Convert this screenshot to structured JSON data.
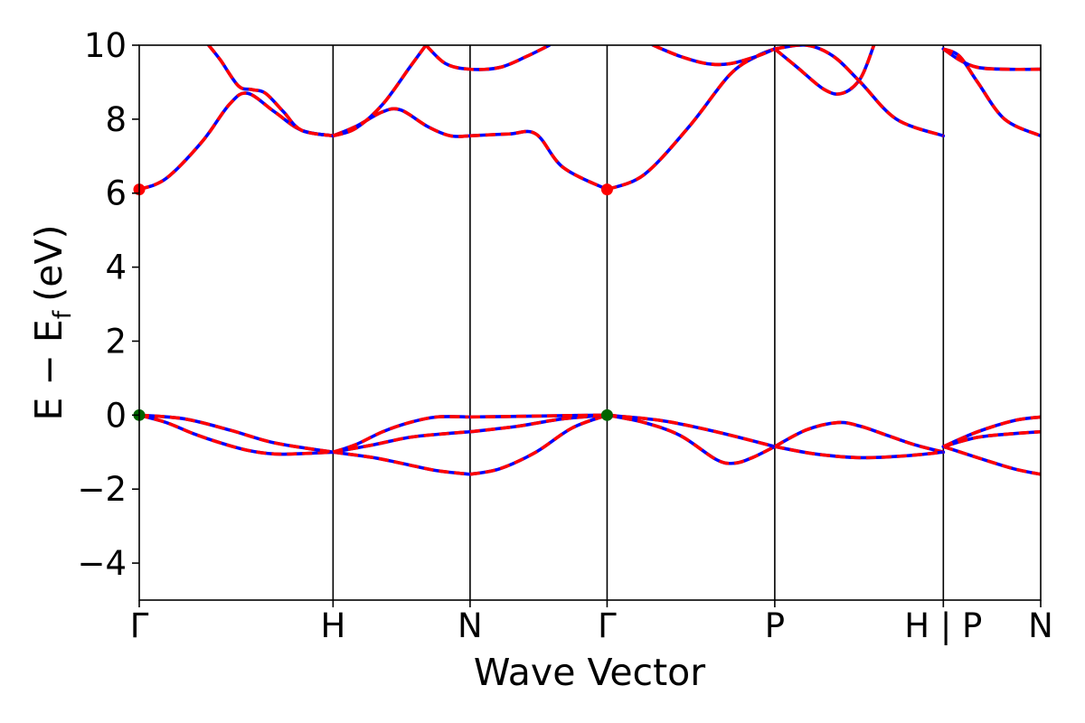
{
  "chart_data": {
    "type": "line",
    "title": "",
    "xlabel": "Wave Vector",
    "ylabel": "E − E",
    "ylabel_sub": "f",
    "ylabel_unit": "(eV)",
    "ylim": [
      -5,
      10
    ],
    "yticks": [
      -4,
      -2,
      0,
      2,
      4,
      6,
      8,
      10
    ],
    "ytick_labels": [
      "−4",
      "−2",
      "0",
      "2",
      "4",
      "6",
      "8",
      "10"
    ],
    "xlim": [
      0,
      1
    ],
    "kpoints": [
      {
        "label": "Γ",
        "x": 0.0
      },
      {
        "label": "H",
        "x": 0.215
      },
      {
        "label": "N",
        "x": 0.367
      },
      {
        "label": "Γ",
        "x": 0.519
      },
      {
        "label": "P",
        "x": 0.705
      },
      {
        "label": "H | P",
        "x": 0.892
      },
      {
        "label": "N",
        "x": 1.0
      }
    ],
    "band_colors": {
      "base": "#0000ff",
      "overlay": "#ff0000",
      "vbm": "#006400",
      "cbm": "#ff0000"
    },
    "bands": [
      {
        "name": "",
        "x": [
          0.0,
          0.03,
          0.06,
          0.09,
          0.12,
          0.15,
          0.18,
          0.215
        ],
        "y": [
          0.0,
          -0.2,
          -0.5,
          -0.75,
          -0.95,
          -1.05,
          -1.04,
          -1.0
        ]
      },
      {
        "name": "",
        "x": [
          0.0,
          0.05,
          0.1,
          0.15,
          0.215
        ],
        "y": [
          0.0,
          -0.1,
          -0.4,
          -0.75,
          -1.0
        ]
      },
      {
        "name": "",
        "x": [
          0.215,
          0.26,
          0.3,
          0.33,
          0.367
        ],
        "y": [
          -1.0,
          -1.15,
          -1.35,
          -1.5,
          -1.6
        ]
      },
      {
        "name": "",
        "x": [
          0.215,
          0.26,
          0.3,
          0.34,
          0.367
        ],
        "y": [
          -1.0,
          -0.8,
          -0.6,
          -0.5,
          -0.45
        ]
      },
      {
        "name": "",
        "x": [
          0.215,
          0.24,
          0.27,
          0.3,
          0.33,
          0.367
        ],
        "y": [
          -1.0,
          -0.8,
          -0.45,
          -0.2,
          -0.05,
          -0.05
        ]
      },
      {
        "name": "",
        "x": [
          0.367,
          0.4,
          0.44,
          0.48,
          0.519
        ],
        "y": [
          -1.6,
          -1.45,
          -1.0,
          -0.35,
          0.0
        ]
      },
      {
        "name": "",
        "x": [
          0.367,
          0.42,
          0.47,
          0.519
        ],
        "y": [
          -0.45,
          -0.3,
          -0.1,
          0.0
        ]
      },
      {
        "name": "",
        "x": [
          0.367,
          0.43,
          0.48,
          0.519
        ],
        "y": [
          -0.05,
          -0.03,
          -0.01,
          0.0
        ]
      },
      {
        "name": "",
        "x": [
          0.519,
          0.56,
          0.6,
          0.64,
          0.66,
          0.68,
          0.705
        ],
        "y": [
          0.0,
          -0.2,
          -0.55,
          -1.2,
          -1.3,
          -1.15,
          -0.85
        ]
      },
      {
        "name": "",
        "x": [
          0.519,
          0.58,
          0.64,
          0.705
        ],
        "y": [
          0.0,
          -0.15,
          -0.45,
          -0.85
        ]
      },
      {
        "name": "",
        "x": [
          0.705,
          0.74,
          0.775,
          0.8,
          0.83,
          0.86,
          0.892
        ],
        "y": [
          -0.85,
          -0.4,
          -0.2,
          -0.3,
          -0.55,
          -0.8,
          -1.0
        ]
      },
      {
        "name": "",
        "x": [
          0.705,
          0.75,
          0.8,
          0.85,
          0.892
        ],
        "y": [
          -0.85,
          -1.05,
          -1.15,
          -1.1,
          -1.0
        ]
      },
      {
        "name": "",
        "x": [
          0.892,
          0.93,
          0.97,
          1.0
        ],
        "y": [
          -0.85,
          -1.15,
          -1.45,
          -1.6
        ]
      },
      {
        "name": "",
        "x": [
          0.892,
          0.93,
          0.97,
          1.0
        ],
        "y": [
          -0.85,
          -0.6,
          -0.5,
          -0.45
        ]
      },
      {
        "name": "",
        "x": [
          0.892,
          0.93,
          0.97,
          1.0
        ],
        "y": [
          -0.85,
          -0.45,
          -0.15,
          -0.05
        ]
      },
      {
        "name": "",
        "x": [
          0.0,
          0.03,
          0.07,
          0.1,
          0.12,
          0.15,
          0.18,
          0.215
        ],
        "y": [
          6.1,
          6.4,
          7.4,
          8.4,
          8.7,
          8.2,
          7.7,
          7.55
        ]
      },
      {
        "name": "",
        "x": [
          0.077,
          0.09,
          0.11,
          0.125,
          0.14,
          0.16,
          0.18,
          0.215
        ],
        "y": [
          10.0,
          9.6,
          8.9,
          8.8,
          8.7,
          8.2,
          7.7,
          7.55
        ]
      },
      {
        "name": "",
        "x": [
          0.215,
          0.24,
          0.27,
          0.29,
          0.32,
          0.345,
          0.367
        ],
        "y": [
          7.55,
          7.8,
          8.2,
          8.25,
          7.8,
          7.55,
          7.55
        ]
      },
      {
        "name": "",
        "x": [
          0.215,
          0.24,
          0.27,
          0.3,
          0.318
        ],
        "y": [
          7.55,
          7.75,
          8.4,
          9.4,
          10.0
        ]
      },
      {
        "name": "",
        "x": [
          0.318,
          0.34,
          0.367,
          0.4,
          0.43,
          0.455
        ],
        "y": [
          10.0,
          9.5,
          9.35,
          9.4,
          9.7,
          10.0
        ]
      },
      {
        "name": "",
        "x": [
          0.367,
          0.41,
          0.44,
          0.47,
          0.519
        ],
        "y": [
          7.55,
          7.6,
          7.6,
          6.7,
          6.1
        ]
      },
      {
        "name": "",
        "x": [
          0.519,
          0.56,
          0.61,
          0.655,
          0.685,
          0.705
        ],
        "y": [
          6.1,
          6.5,
          7.8,
          9.2,
          9.7,
          9.9
        ]
      },
      {
        "name": "",
        "x": [
          0.57,
          0.6,
          0.63,
          0.655,
          0.685,
          0.705
        ],
        "y": [
          10.0,
          9.7,
          9.5,
          9.5,
          9.7,
          9.9
        ]
      },
      {
        "name": "",
        "x": [
          0.705,
          0.73,
          0.76,
          0.78,
          0.8,
          0.815
        ],
        "y": [
          9.9,
          9.4,
          8.8,
          8.7,
          9.1,
          10.0
        ]
      },
      {
        "name": "",
        "x": [
          0.705,
          0.74,
          0.77,
          0.8,
          0.84,
          0.892
        ],
        "y": [
          9.9,
          10.0,
          9.7,
          9.0,
          8.0,
          7.55
        ]
      },
      {
        "name": "",
        "x": [
          0.892,
          0.91,
          0.93,
          0.96,
          1.0
        ],
        "y": [
          9.9,
          9.6,
          9.4,
          9.35,
          9.35
        ]
      },
      {
        "name": "",
        "x": [
          0.892,
          0.91,
          0.93,
          0.96,
          1.0
        ],
        "y": [
          9.9,
          9.7,
          9.0,
          8.0,
          7.55
        ]
      }
    ],
    "markers": [
      {
        "kind": "cbm",
        "x": 0.0,
        "y": 6.1
      },
      {
        "kind": "cbm",
        "x": 0.519,
        "y": 6.1
      },
      {
        "kind": "vbm",
        "x": 0.0,
        "y": 0.0
      },
      {
        "kind": "vbm",
        "x": 0.519,
        "y": 0.0
      }
    ],
    "grid": false,
    "legend": "none"
  }
}
